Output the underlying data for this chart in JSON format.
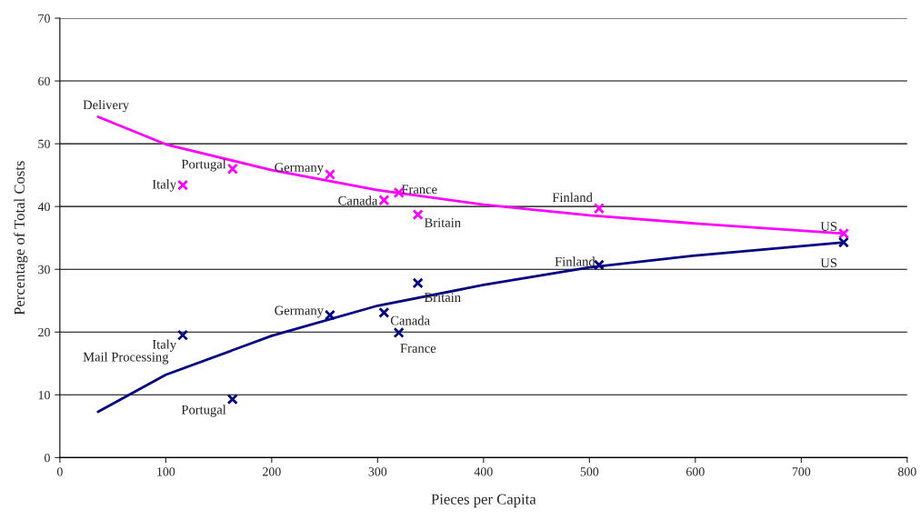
{
  "chart_data": {
    "type": "scatter",
    "xlabel": "Pieces per Capita",
    "ylabel": "Percentage of Total Costs",
    "xlim": [
      0,
      800
    ],
    "xticks": [
      0,
      100,
      200,
      300,
      400,
      500,
      600,
      700,
      800
    ],
    "ylim": [
      0,
      70
    ],
    "yticks": [
      0,
      10,
      20,
      30,
      40,
      50,
      60,
      70
    ],
    "grid": "y",
    "legend": false,
    "series": [
      {
        "marker": "cross",
        "color": "#ff00ff",
        "x": [
          116,
          163,
          255,
          306,
          320,
          338,
          509,
          740
        ],
        "values": [
          43.4,
          46.0,
          45.1,
          41.0,
          42.2,
          38.7,
          39.7,
          35.7
        ]
      },
      {
        "marker": "cross",
        "color": "#000080",
        "x": [
          116,
          163,
          255,
          306,
          320,
          338,
          509,
          740
        ],
        "values": [
          19.5,
          9.3,
          22.7,
          23.1,
          19.9,
          27.8,
          30.7,
          34.3
        ]
      },
      {
        "type": "line",
        "name": "Delivery",
        "color": "#ff00ff",
        "x": [
          36,
          100,
          200,
          300,
          400,
          500,
          600,
          740
        ],
        "values": [
          54.3,
          49.9,
          45.8,
          42.6,
          40.3,
          38.6,
          37.3,
          35.7
        ]
      },
      {
        "type": "line",
        "name": "Mail Processing",
        "color": "#000080",
        "x": [
          36,
          100,
          200,
          300,
          400,
          500,
          600,
          740
        ],
        "values": [
          7.3,
          13.2,
          19.4,
          24.2,
          27.5,
          30.3,
          32.2,
          34.3
        ]
      }
    ],
    "annotations": [
      {
        "text": "Italy",
        "x": 116,
        "y": 43.4
      },
      {
        "text": "Portugal",
        "x": 163,
        "y": 46.0
      },
      {
        "text": "Germany",
        "x": 255,
        "y": 45.1
      },
      {
        "text": "Canada",
        "x": 306,
        "y": 41.0
      },
      {
        "text": "France",
        "x": 320,
        "y": 42.2
      },
      {
        "text": "Britain",
        "x": 338,
        "y": 38.7
      },
      {
        "text": "Finland",
        "x": 509,
        "y": 39.7
      },
      {
        "text": "US",
        "x": 740,
        "y": 35.7
      },
      {
        "text": "Italy",
        "x": 116,
        "y": 19.5
      },
      {
        "text": "Portugal",
        "x": 163,
        "y": 9.3
      },
      {
        "text": "Germany",
        "x": 255,
        "y": 22.7
      },
      {
        "text": "Canada",
        "x": 306,
        "y": 23.1
      },
      {
        "text": "France",
        "x": 320,
        "y": 19.9
      },
      {
        "text": "Britain",
        "x": 338,
        "y": 27.8
      },
      {
        "text": "Finland",
        "x": 509,
        "y": 30.7
      },
      {
        "text": "US",
        "x": 740,
        "y": 34.3
      }
    ]
  }
}
